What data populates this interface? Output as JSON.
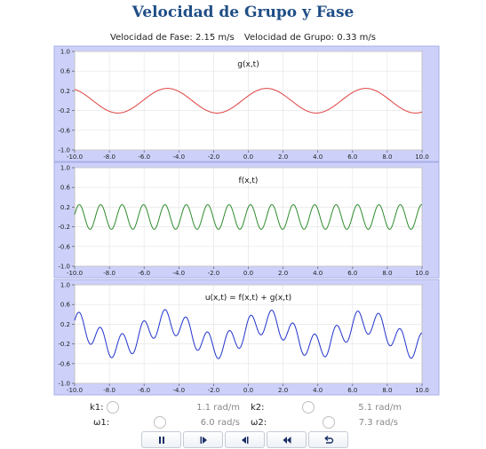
{
  "header": {
    "title": "Velocidad de Grupo y Fase",
    "phase_velocity": "Velocidad de Fase: 2.15 m/s",
    "group_velocity": "Velocidad de Grupo: 0.33 m/s"
  },
  "controls": {
    "k1": {
      "label": "k1:",
      "value": "1.1 rad/m"
    },
    "k2": {
      "label": "k2:",
      "value": "5.1 rad/m"
    },
    "w1": {
      "label": "ω1:",
      "value": "6.0 rad/s"
    },
    "w2": {
      "label": "ω2:",
      "value": "7.3 rad/s"
    }
  },
  "buttons": [
    {
      "name": "pause-button",
      "icon": "pause-icon"
    },
    {
      "name": "step-forward-button",
      "icon": "step-forward-icon"
    },
    {
      "name": "step-back-button",
      "icon": "step-back-icon"
    },
    {
      "name": "rewind-button",
      "icon": "rewind-icon"
    },
    {
      "name": "reset-button",
      "icon": "reset-icon"
    }
  ],
  "colors": {
    "panel_bg": "#cdd1fa",
    "g_line": "#e04040",
    "f_line": "#2e8b2e",
    "u_line": "#2233cc",
    "grid": "#e6e6e6"
  },
  "chart_data": [
    {
      "type": "line",
      "title": "g(x,t)",
      "xlim": [
        -10,
        10
      ],
      "ylim": [
        -1,
        1
      ],
      "xticks": [
        "-10.0",
        "-8.0",
        "-6.0",
        "-4.0",
        "-2.0",
        "0.0",
        "2.0",
        "4.0",
        "6.0",
        "8.0",
        "10.0"
      ],
      "yticks": [
        "1.0",
        "0.6",
        "0.2",
        "-0.2",
        "-0.6",
        "-1.0"
      ],
      "series": [
        {
          "formula": "A·sin(k·x + φ)",
          "amplitude": 0.25,
          "k": 1.1,
          "phase": 0.41,
          "color": "#e04040"
        }
      ]
    },
    {
      "type": "line",
      "title": "f(x,t)",
      "xlim": [
        -10,
        10
      ],
      "ylim": [
        -1,
        1
      ],
      "xticks": [
        "-10.0",
        "-8.0",
        "-6.0",
        "-4.0",
        "-2.0",
        "0.0",
        "2.0",
        "4.0",
        "6.0",
        "8.0",
        "10.0"
      ],
      "yticks": [
        "1.0",
        "0.6",
        "0.2",
        "-0.2",
        "-0.6",
        "-1.0"
      ],
      "series": [
        {
          "formula": "A·sin(k·x + φ)",
          "amplitude": 0.25,
          "k": 5.1,
          "phase": 0.93,
          "color": "#2e8b2e"
        }
      ]
    },
    {
      "type": "line",
      "title": "u(x,t) = f(x,t) + g(x,t)",
      "xlim": [
        -10,
        10
      ],
      "ylim": [
        -1,
        1
      ],
      "xticks": [
        "-10.0",
        "-8.0",
        "-6.0",
        "-4.0",
        "-2.0",
        "0.0",
        "2.0",
        "4.0",
        "6.0",
        "8.0",
        "10.0"
      ],
      "yticks": [
        "1.0",
        "0.6",
        "0.2",
        "-0.2",
        "-0.6",
        "-1.0"
      ],
      "series": [
        {
          "formula": "f(x,t) + g(x,t)",
          "color": "#2233cc"
        }
      ]
    }
  ]
}
